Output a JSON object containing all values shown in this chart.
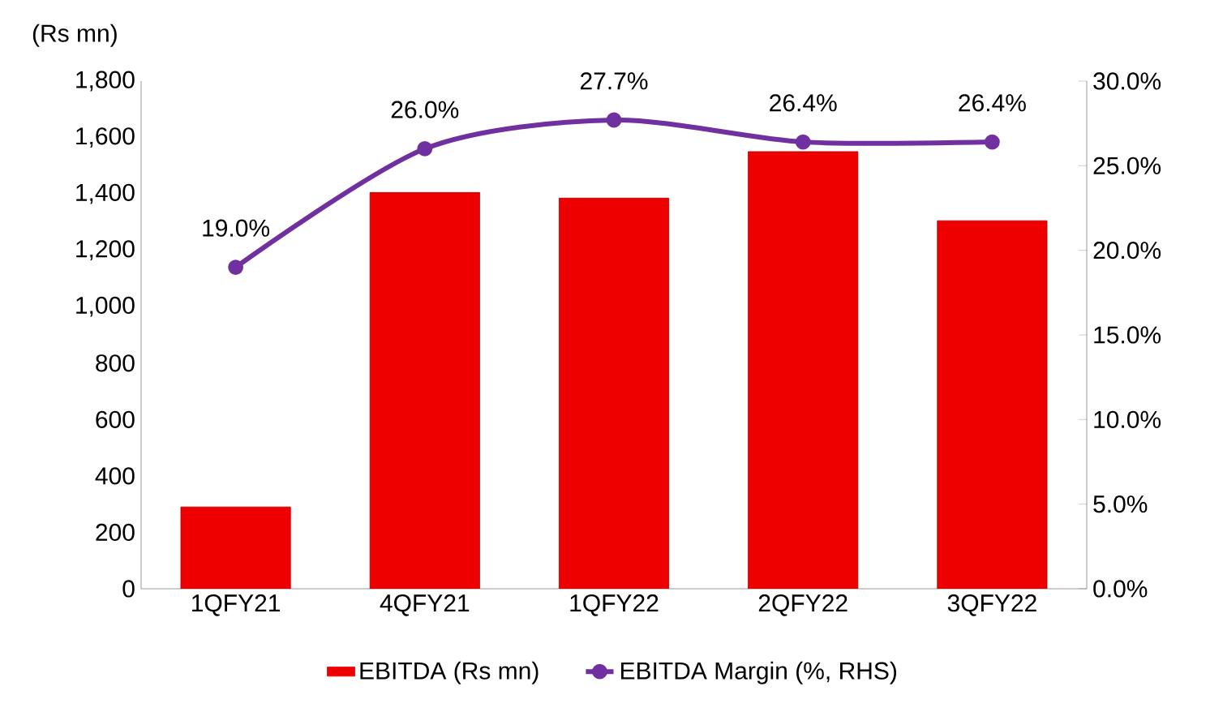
{
  "chart_data": {
    "type": "bar",
    "ylabel": "(Rs mn)",
    "categories": [
      "1QFY21",
      "4QFY21",
      "1QFY22",
      "2QFY22",
      "3QFY22"
    ],
    "series": [
      {
        "name": "EBITDA (Rs mn)",
        "color": "#ee0000",
        "values": [
          290,
          1405,
          1385,
          1550,
          1305
        ]
      },
      {
        "name": "EBITDA Margin (%, RHS)",
        "type": "line",
        "axis": "y2",
        "color": "#7030a0",
        "values": [
          19.0,
          26.0,
          27.7,
          26.4,
          26.4
        ],
        "value_labels": [
          "19.0%",
          "26.0%",
          "27.7%",
          "26.4%",
          "26.4%"
        ]
      }
    ],
    "ylim": [
      0,
      1800
    ],
    "yticks": [
      {
        "value": 0,
        "label": "0"
      },
      {
        "value": 200,
        "label": "200"
      },
      {
        "value": 400,
        "label": "400"
      },
      {
        "value": 600,
        "label": "600"
      },
      {
        "value": 800,
        "label": "800"
      },
      {
        "value": 1000,
        "label": "1,000"
      },
      {
        "value": 1200,
        "label": "1,200"
      },
      {
        "value": 1400,
        "label": "1,400"
      },
      {
        "value": 1600,
        "label": "1,600"
      },
      {
        "value": 1800,
        "label": "1,800"
      }
    ],
    "y2lim": [
      0,
      30
    ],
    "y2ticks": [
      {
        "value": 0,
        "label": "0.0%"
      },
      {
        "value": 5,
        "label": "5.0%"
      },
      {
        "value": 10,
        "label": "10.0%"
      },
      {
        "value": 15,
        "label": "15.0%"
      },
      {
        "value": 20,
        "label": "20.0%"
      },
      {
        "value": 25,
        "label": "25.0%"
      },
      {
        "value": 30,
        "label": "30.0%"
      }
    ],
    "marker": "circle",
    "line_style": "solid",
    "legend": "bottom"
  }
}
